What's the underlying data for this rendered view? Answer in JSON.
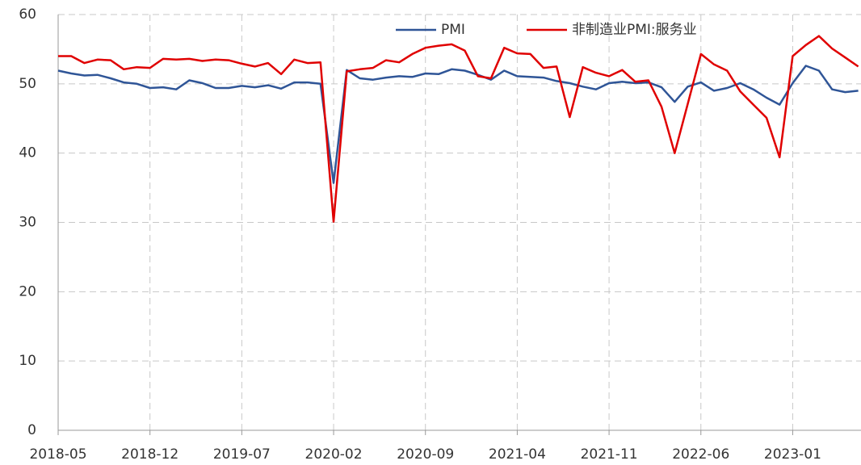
{
  "chart_data": {
    "type": "line",
    "categories": [
      "2018-05",
      null,
      null,
      null,
      null,
      null,
      null,
      "2018-12",
      null,
      null,
      null,
      null,
      null,
      null,
      "2019-07",
      null,
      null,
      null,
      null,
      null,
      null,
      "2020-02",
      null,
      null,
      null,
      null,
      null,
      null,
      "2020-09",
      null,
      null,
      null,
      null,
      null,
      null,
      "2021-04",
      null,
      null,
      null,
      null,
      null,
      null,
      "2021-11",
      null,
      null,
      null,
      null,
      null,
      null,
      "2022-06",
      null,
      null,
      null,
      null,
      null,
      null,
      "2023-01",
      null,
      null,
      null,
      null,
      null
    ],
    "series": [
      {
        "name": "PMI",
        "color": "#2f5597",
        "values": [
          51.9,
          51.5,
          51.2,
          51.3,
          50.8,
          50.2,
          50.0,
          49.4,
          49.5,
          49.2,
          50.5,
          50.1,
          49.4,
          49.4,
          49.7,
          49.5,
          49.8,
          49.3,
          50.2,
          50.2,
          50.0,
          35.7,
          52.0,
          50.8,
          50.6,
          50.9,
          51.1,
          51.0,
          51.5,
          51.4,
          52.1,
          51.9,
          51.3,
          50.6,
          51.9,
          51.1,
          51.0,
          50.9,
          50.4,
          50.1,
          49.6,
          49.2,
          50.1,
          50.3,
          50.1,
          50.2,
          49.5,
          47.4,
          49.6,
          50.2,
          49.0,
          49.4,
          50.1,
          49.2,
          48.0,
          47.0,
          50.1,
          52.6,
          51.9,
          49.2,
          48.8,
          49.0
        ]
      },
      {
        "name": "非制造业PMI:服务业",
        "color": "#e00000",
        "values": [
          54.0,
          54.0,
          53.0,
          53.5,
          53.4,
          52.1,
          52.4,
          52.3,
          53.6,
          53.5,
          53.6,
          53.3,
          53.5,
          53.4,
          52.9,
          52.5,
          53.0,
          51.4,
          53.5,
          53.0,
          53.1,
          30.1,
          51.8,
          52.1,
          52.3,
          53.4,
          53.1,
          54.3,
          55.2,
          55.5,
          55.7,
          54.8,
          51.1,
          50.8,
          55.2,
          54.4,
          54.3,
          52.3,
          52.5,
          45.2,
          52.4,
          51.6,
          51.1,
          52.0,
          50.3,
          50.5,
          46.7,
          40.0,
          47.1,
          54.3,
          52.8,
          51.9,
          48.9,
          47.0,
          45.1,
          39.4,
          54.0,
          55.6,
          56.9,
          55.1,
          53.8,
          52.5
        ]
      }
    ],
    "ylim": [
      0,
      60
    ],
    "yticks": [
      0,
      10,
      20,
      30,
      40,
      50,
      60
    ],
    "grid": true
  }
}
